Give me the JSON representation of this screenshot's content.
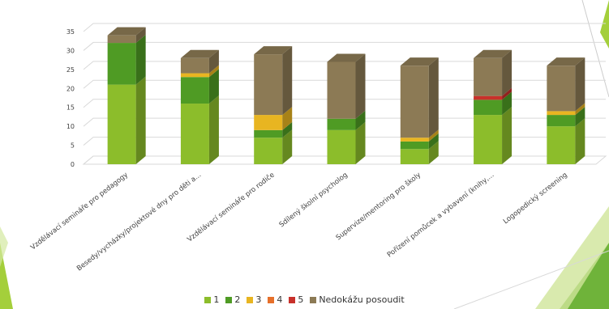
{
  "chart_data": {
    "type": "bar",
    "stacked": true,
    "three_d": true,
    "categories": [
      "Vzdělávací semináře pro pedagogy",
      "Besedy/vycházky/projektové dny pro děti a...",
      "Vzdělávací semináře pro rodiče",
      "Sdílený školní psycholog",
      "Supervize/mentoring pro školy",
      "Pořízení pomůcek a vybavení (knihy,...",
      "Logopedický screening"
    ],
    "series": [
      {
        "name": "1",
        "color": "#8cbd2b",
        "values": [
          21,
          16,
          7,
          9,
          4,
          13,
          10
        ]
      },
      {
        "name": "2",
        "color": "#4f9b24",
        "values": [
          11,
          7,
          2,
          3,
          2,
          4,
          3
        ]
      },
      {
        "name": "3",
        "color": "#e8b521",
        "values": [
          0,
          1,
          4,
          0,
          1,
          0,
          1
        ]
      },
      {
        "name": "4",
        "color": "#e6702b",
        "values": [
          0,
          0,
          0,
          0,
          0,
          0,
          0
        ]
      },
      {
        "name": "5",
        "color": "#c8312b",
        "values": [
          0,
          0,
          0,
          0,
          0,
          1,
          0
        ]
      },
      {
        "name": "Nedokážu posoudit",
        "color": "#8c7a55",
        "values": [
          2,
          4,
          16,
          15,
          19,
          10,
          12
        ]
      }
    ],
    "ylim": [
      0,
      35
    ],
    "yticks": [
      0,
      5,
      10,
      15,
      20,
      25,
      30,
      35
    ],
    "grid": true,
    "legend_position": "bottom"
  }
}
